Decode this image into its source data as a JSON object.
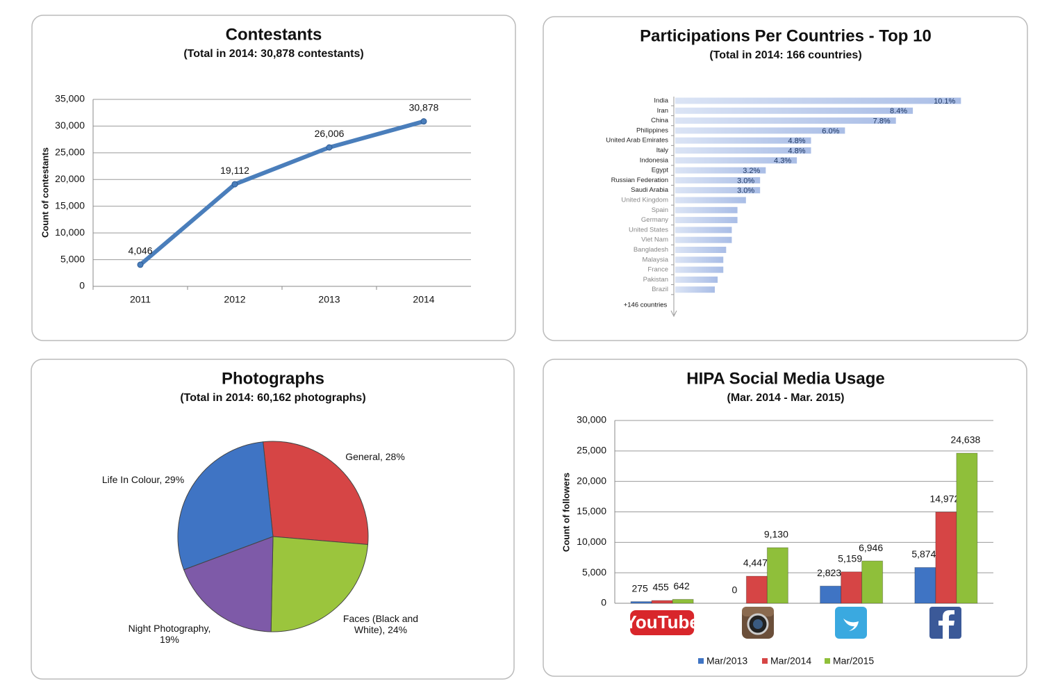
{
  "chart_data": [
    {
      "type": "line",
      "title": "Contestants",
      "subtitle": "(Total in 2014: 30,878 contestants)",
      "y_label": "Count of contestants",
      "categories": [
        "2011",
        "2012",
        "2013",
        "2014"
      ],
      "values": [
        4046,
        19112,
        26006,
        30878
      ],
      "value_labels": [
        "4,046",
        "19,112",
        "26,006",
        "30,878"
      ],
      "color": "#4a7ebb",
      "ylim": [
        0,
        35000
      ],
      "yticks": [
        0,
        {
          "value": 5000,
          "label": "5,000"
        },
        {
          "value": 10000,
          "label": "10,000"
        },
        {
          "value": 15000,
          "label": "15,000"
        },
        {
          "value": 20000,
          "label": "20,000"
        },
        {
          "value": 25000,
          "label": "25,000"
        },
        {
          "value": 30000,
          "label": "30,000"
        },
        {
          "value": 35000,
          "label": "35,000"
        }
      ],
      "grid": true
    },
    {
      "type": "hbar",
      "title": "Participations Per Countries - Top 10",
      "subtitle": "(Total in 2014: 166 countries)",
      "categories": [
        "India",
        "Iran",
        "China",
        "Philippines",
        "United Arab Emirates",
        "Italy",
        "Indonesia",
        "Egypt",
        "Russian Federation",
        "Saudi Arabia",
        "United Kingdom",
        "Spain",
        "Germany",
        "United States",
        "Viet Nam",
        "Bangladesh",
        "Malaysia",
        "France",
        "Pakistan",
        "Brazil"
      ],
      "values": [
        10.1,
        8.4,
        7.8,
        6.0,
        4.8,
        4.8,
        4.3,
        3.2,
        3.0,
        3.0,
        2.5,
        2.2,
        2.2,
        2.0,
        2.0,
        1.8,
        1.7,
        1.7,
        1.5,
        1.4
      ],
      "value_labels": [
        "10.1%",
        "8.4%",
        "7.8%",
        "6.0%",
        "4.8%",
        "4.8%",
        "4.3%",
        "3.2%",
        "3.0%",
        "3.0%",
        null,
        null,
        null,
        null,
        null,
        null,
        null,
        null,
        null,
        null
      ],
      "color": "#aebfe6",
      "xlim": [
        0,
        11
      ],
      "annotation": "+146 countries"
    },
    {
      "type": "pie",
      "title": "Photographs",
      "subtitle": "(Total in 2014: 60,162 photographs)",
      "categories": [
        "General, 28%",
        "Faces (Black and White), 24%",
        "Night Photography, 19%",
        "Life In Colour, 29%"
      ],
      "values": [
        28,
        24,
        19,
        29
      ],
      "colors": [
        "#d64545",
        "#9bc53d",
        "#7e5aa8",
        "#3f74c4"
      ]
    },
    {
      "type": "grouped-bar",
      "title": "HIPA Social Media Usage",
      "subtitle": "(Mar. 2014 - Mar. 2015)",
      "y_label": "Count of followers",
      "categories": [
        "YouTube",
        null,
        null,
        null
      ],
      "series": [
        {
          "name": "Mar/2013",
          "color": "#3f74c4",
          "values": [
            275,
            0,
            2823,
            5874
          ],
          "value_labels": [
            "275",
            "0",
            "2,823",
            "5,874"
          ]
        },
        {
          "name": "Mar/2014",
          "color": "#d64545",
          "values": [
            455,
            4447,
            5159,
            14972
          ],
          "value_labels": [
            "455",
            "4,447",
            "5,159",
            "14,972"
          ]
        },
        {
          "name": "Mar/2015",
          "color": "#8fbf3a",
          "values": [
            642,
            9130,
            6946,
            24638
          ],
          "value_labels": [
            "642",
            "9,130",
            "6,946",
            "24,638"
          ]
        }
      ],
      "ylim": [
        0,
        30000
      ],
      "yticks": [
        0,
        {
          "value": 5000,
          "label": "5,000"
        },
        {
          "value": 10000,
          "label": "10,000"
        },
        {
          "value": 15000,
          "label": "15,000"
        },
        {
          "value": 20000,
          "label": "20,000"
        },
        {
          "value": 25000,
          "label": "25,000"
        },
        {
          "value": 30000,
          "label": "30,000"
        }
      ],
      "grid": true,
      "legend": "bottom"
    }
  ]
}
